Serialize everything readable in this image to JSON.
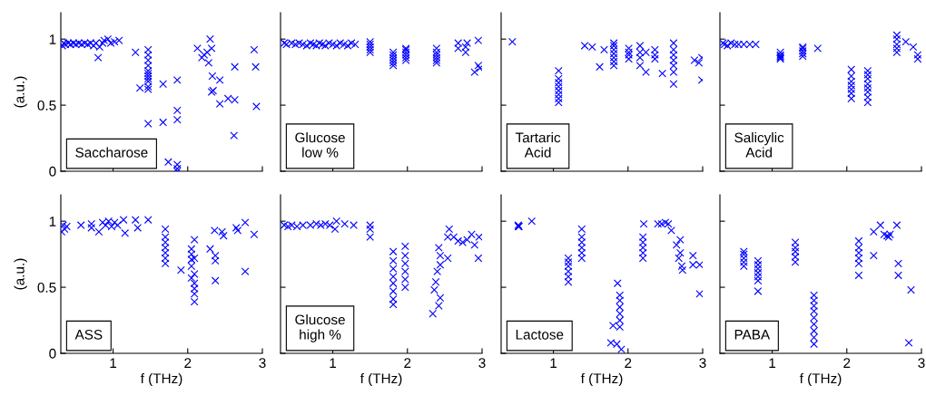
{
  "chart_data": [
    {
      "type": "scatter",
      "ylabel": "(a.u.)",
      "annotations": [
        "Saccharose"
      ],
      "xlim": [
        0.3,
        3
      ],
      "ylim": [
        0,
        1.2
      ],
      "xticks": [
        1,
        2,
        3
      ],
      "yticks": [
        0,
        0.5,
        1
      ],
      "tick_labels": "y",
      "marker": "cross",
      "series": [
        {
          "color": "#0000ff",
          "x": [
            0.32,
            0.34,
            0.36,
            0.4,
            0.43,
            0.47,
            0.5,
            0.54,
            0.58,
            0.62,
            0.66,
            0.7,
            0.74,
            0.77,
            0.8,
            0.82,
            0.86,
            0.88,
            0.93,
            0.97,
            1.02,
            1.08,
            1.3,
            1.36,
            1.47,
            1.47,
            1.47,
            1.47,
            1.47,
            1.47,
            1.47,
            1.47,
            1.47,
            1.47,
            1.47,
            1.47,
            1.67,
            1.67,
            1.86,
            1.86,
            1.86,
            1.74,
            1.86,
            1.86,
            1.86,
            2.13,
            2.19,
            2.22,
            2.26,
            2.28,
            2.3,
            2.32,
            2.33,
            2.32,
            2.34,
            2.43,
            2.43,
            2.54,
            2.63,
            2.63,
            2.62,
            2.89,
            2.91,
            2.92
          ],
          "values": [
            0.95,
            0.97,
            0.96,
            0.97,
            0.96,
            0.97,
            0.96,
            0.97,
            0.96,
            0.97,
            0.96,
            0.97,
            0.95,
            0.97,
            0.86,
            0.94,
            0.97,
            0.99,
            1.0,
            0.97,
            0.98,
            0.99,
            0.9,
            0.63,
            0.62,
            0.64,
            0.68,
            0.7,
            0.72,
            0.74,
            0.76,
            0.8,
            0.84,
            0.88,
            0.92,
            0.36,
            0.37,
            0.66,
            0.69,
            0.46,
            0.39,
            0.07,
            0.05,
            0.02,
            0.0,
            0.93,
            0.86,
            0.88,
            0.9,
            0.82,
            1.0,
            0.93,
            0.72,
            0.6,
            0.61,
            0.69,
            0.51,
            0.55,
            0.54,
            0.79,
            0.27,
            0.92,
            0.79,
            0.49
          ]
        }
      ]
    },
    {
      "type": "scatter",
      "annotations": [
        "Glucose\nlow %"
      ],
      "xlim": [
        0.3,
        3
      ],
      "ylim": [
        0,
        1.2
      ],
      "xticks": [
        1,
        2,
        3
      ],
      "yticks": [
        0,
        0.5,
        1
      ],
      "tick_labels": false,
      "marker": "cross",
      "series": [
        {
          "color": "#0000ff",
          "x": [
            0.35,
            0.38,
            0.45,
            0.5,
            0.55,
            0.6,
            0.65,
            0.7,
            0.74,
            0.78,
            0.82,
            0.86,
            0.9,
            0.95,
            1.0,
            1.05,
            1.1,
            1.15,
            1.2,
            1.25,
            1.3,
            1.5,
            1.5,
            1.5,
            1.5,
            1.5,
            1.81,
            1.81,
            1.81,
            1.81,
            1.81,
            1.81,
            1.98,
            1.98,
            1.98,
            1.98,
            1.98,
            1.98,
            2.39,
            2.39,
            2.39,
            2.39,
            2.39,
            2.39,
            2.68,
            2.68,
            2.78,
            2.78,
            2.8,
            2.95,
            2.9,
            2.95,
            2.97
          ],
          "values": [
            0.97,
            0.96,
            0.97,
            0.96,
            0.97,
            0.96,
            0.95,
            0.97,
            0.96,
            0.95,
            0.97,
            0.96,
            0.95,
            0.97,
            0.96,
            0.95,
            0.97,
            0.96,
            0.95,
            0.97,
            0.96,
            0.9,
            0.92,
            0.94,
            0.96,
            0.98,
            0.8,
            0.82,
            0.84,
            0.86,
            0.88,
            0.9,
            0.84,
            0.86,
            0.88,
            0.9,
            0.92,
            0.93,
            0.82,
            0.84,
            0.86,
            0.88,
            0.9,
            0.93,
            0.93,
            0.97,
            0.9,
            0.94,
            0.97,
            0.99,
            0.75,
            0.8,
            0.78
          ]
        }
      ]
    },
    {
      "type": "scatter",
      "annotations": [
        "Tartaric\nAcid"
      ],
      "xlim": [
        0.3,
        3
      ],
      "ylim": [
        0,
        1.2
      ],
      "xticks": [
        1,
        2,
        3
      ],
      "yticks": [
        0,
        0.5,
        1
      ],
      "tick_labels": false,
      "marker": "cross",
      "series": [
        {
          "color": "#0000ff",
          "x": [
            0.45,
            1.07,
            1.07,
            1.07,
            1.07,
            1.07,
            1.07,
            1.07,
            1.07,
            1.42,
            1.52,
            1.62,
            1.68,
            1.81,
            1.81,
            1.81,
            1.81,
            1.81,
            1.81,
            1.81,
            2.01,
            2.01,
            2.01,
            2.01,
            2.16,
            2.16,
            2.16,
            2.16,
            2.24,
            2.24,
            2.36,
            2.36,
            2.36,
            2.46,
            2.61,
            2.61,
            2.61,
            2.61,
            2.61,
            2.61,
            2.61,
            2.89,
            2.95,
            2.99,
            2.99
          ],
          "values": [
            0.98,
            0.52,
            0.55,
            0.58,
            0.61,
            0.64,
            0.67,
            0.7,
            0.76,
            0.95,
            0.94,
            0.79,
            0.92,
            0.8,
            0.83,
            0.86,
            0.89,
            0.92,
            0.95,
            0.97,
            0.85,
            0.88,
            0.9,
            0.93,
            0.8,
            0.86,
            0.9,
            0.95,
            0.75,
            0.9,
            0.85,
            0.88,
            0.92,
            0.74,
            0.66,
            0.75,
            0.8,
            0.84,
            0.88,
            0.92,
            0.97,
            0.84,
            0.82,
            0.86,
            0.69
          ]
        }
      ]
    },
    {
      "type": "scatter",
      "annotations": [
        "Salicylic\nAcid"
      ],
      "xlim": [
        0.3,
        3
      ],
      "ylim": [
        0,
        1.2
      ],
      "xticks": [
        1,
        2,
        3
      ],
      "yticks": [
        0,
        0.5,
        1
      ],
      "tick_labels": false,
      "marker": "cross",
      "series": [
        {
          "color": "#0000ff",
          "x": [
            0.34,
            0.36,
            0.4,
            0.45,
            0.5,
            0.55,
            0.62,
            0.7,
            0.78,
            1.11,
            1.11,
            1.11,
            1.11,
            1.11,
            1.41,
            1.41,
            1.41,
            1.41,
            1.41,
            1.61,
            2.06,
            2.06,
            2.06,
            2.06,
            2.06,
            2.06,
            2.06,
            2.28,
            2.28,
            2.28,
            2.28,
            2.28,
            2.28,
            2.28,
            2.28,
            2.67,
            2.67,
            2.67,
            2.67,
            2.67,
            2.79,
            2.89,
            2.95,
            2.95
          ],
          "values": [
            0.97,
            0.96,
            0.95,
            0.97,
            0.96,
            0.96,
            0.96,
            0.96,
            0.96,
            0.85,
            0.86,
            0.87,
            0.88,
            0.9,
            0.87,
            0.89,
            0.91,
            0.93,
            0.94,
            0.93,
            0.55,
            0.59,
            0.62,
            0.65,
            0.68,
            0.72,
            0.77,
            0.52,
            0.56,
            0.6,
            0.63,
            0.66,
            0.7,
            0.73,
            0.76,
            0.9,
            0.93,
            0.96,
            1.0,
            1.03,
            0.98,
            0.94,
            0.88,
            0.85
          ]
        }
      ]
    },
    {
      "type": "scatter",
      "xlabel": "f (THz)",
      "ylabel": "(a.u.)",
      "annotations": [
        "ASS"
      ],
      "xlim": [
        0.3,
        3
      ],
      "ylim": [
        0,
        1.2
      ],
      "xticks": [
        1,
        2,
        3
      ],
      "yticks": [
        0,
        0.5,
        1
      ],
      "marker": "cross",
      "series": [
        {
          "color": "#0000ff",
          "x": [
            0.31,
            0.33,
            0.35,
            0.38,
            0.57,
            0.71,
            0.71,
            0.81,
            0.86,
            0.9,
            0.94,
            0.98,
            1.02,
            1.06,
            1.14,
            1.16,
            1.3,
            1.33,
            1.47,
            1.7,
            1.7,
            1.7,
            1.7,
            1.7,
            1.7,
            1.7,
            1.91,
            2.05,
            2.05,
            2.05,
            2.05,
            2.05,
            2.09,
            2.09,
            2.09,
            2.09,
            2.09,
            2.09,
            2.09,
            2.3,
            2.37,
            2.37,
            2.37,
            2.36,
            2.46,
            2.48,
            2.65,
            2.67,
            2.77,
            2.77,
            2.89
          ],
          "values": [
            0.92,
            0.97,
            0.94,
            0.96,
            0.97,
            0.95,
            0.98,
            0.92,
            0.99,
            0.97,
            1.0,
            0.96,
            0.99,
            0.97,
            1.01,
            0.91,
            1.01,
            0.95,
            1.01,
            0.68,
            0.72,
            0.76,
            0.8,
            0.84,
            0.88,
            0.94,
            0.63,
            0.57,
            0.66,
            0.71,
            0.75,
            0.79,
            0.39,
            0.45,
            0.49,
            0.53,
            0.6,
            0.72,
            0.86,
            0.79,
            0.7,
            0.74,
            0.55,
            0.93,
            0.92,
            0.89,
            0.95,
            0.93,
            0.99,
            0.62,
            0.9
          ]
        }
      ]
    },
    {
      "type": "scatter",
      "xlabel": "f (THz)",
      "annotations": [
        "Glucose\nhigh %"
      ],
      "xlim": [
        0.3,
        3
      ],
      "ylim": [
        0,
        1.2
      ],
      "xticks": [
        1,
        2,
        3
      ],
      "yticks": [
        0,
        0.5,
        1
      ],
      "tick_labels": "x",
      "marker": "cross",
      "series": [
        {
          "color": "#0000ff",
          "x": [
            0.35,
            0.4,
            0.45,
            0.52,
            0.6,
            0.7,
            0.78,
            0.84,
            0.9,
            0.96,
            1.03,
            1.05,
            1.16,
            1.28,
            1.5,
            1.5,
            1.5,
            1.81,
            1.81,
            1.81,
            1.81,
            1.81,
            1.81,
            1.81,
            1.81,
            1.97,
            1.97,
            1.97,
            1.97,
            1.97,
            1.97,
            2.34,
            2.36,
            2.38,
            2.4,
            2.42,
            2.44,
            2.44,
            2.44,
            2.42,
            2.54,
            2.54,
            2.56,
            2.62,
            2.68,
            2.74,
            2.8,
            2.86,
            2.9,
            2.95,
            2.96
          ],
          "values": [
            0.97,
            0.96,
            0.97,
            0.96,
            0.97,
            0.97,
            0.98,
            0.97,
            0.98,
            0.97,
            0.94,
            1.0,
            0.98,
            0.97,
            0.88,
            0.94,
            0.97,
            0.37,
            0.41,
            0.47,
            0.53,
            0.58,
            0.64,
            0.7,
            0.77,
            0.5,
            0.56,
            0.62,
            0.68,
            0.74,
            0.81,
            0.3,
            0.48,
            0.54,
            0.62,
            0.36,
            0.42,
            0.67,
            0.74,
            0.8,
            0.72,
            0.88,
            0.94,
            0.88,
            0.85,
            0.84,
            0.86,
            0.9,
            0.82,
            0.72,
            0.88
          ]
        }
      ]
    },
    {
      "type": "scatter",
      "xlabel": "f (THz)",
      "annotations": [
        "Lactose"
      ],
      "xlim": [
        0.3,
        3
      ],
      "ylim": [
        0,
        1.2
      ],
      "xticks": [
        1,
        2,
        3
      ],
      "yticks": [
        0,
        0.5,
        1
      ],
      "tick_labels": "x",
      "marker": "cross",
      "series": [
        {
          "color": "#0000ff",
          "x": [
            0.53,
            0.53,
            0.54,
            0.71,
            1.2,
            1.2,
            1.2,
            1.2,
            1.2,
            1.2,
            1.38,
            1.38,
            1.38,
            1.38,
            1.38,
            1.38,
            1.86,
            1.89,
            1.89,
            1.89,
            1.89,
            1.89,
            1.89,
            1.77,
            1.85,
            1.91,
            1.8,
            2.2,
            2.2,
            2.2,
            2.2,
            2.2,
            2.21,
            2.4,
            2.45,
            2.5,
            2.54,
            2.58,
            2.65,
            2.68,
            2.7,
            2.7,
            2.72,
            2.73,
            2.87,
            2.87,
            2.96,
            2.96
          ],
          "values": [
            0.96,
            0.97,
            0.96,
            1.0,
            0.54,
            0.58,
            0.62,
            0.66,
            0.69,
            0.72,
            0.72,
            0.76,
            0.8,
            0.84,
            0.88,
            0.94,
            0.53,
            0.2,
            0.25,
            0.3,
            0.35,
            0.4,
            0.44,
            0.08,
            0.07,
            0.03,
            0.21,
            0.72,
            0.76,
            0.8,
            0.84,
            0.88,
            0.98,
            0.98,
            0.98,
            0.99,
            0.98,
            0.93,
            0.82,
            0.72,
            0.86,
            0.76,
            0.66,
            0.63,
            0.74,
            0.67,
            0.67,
            0.45
          ]
        }
      ]
    },
    {
      "type": "scatter",
      "xlabel": "f (THz)",
      "annotations": [
        "PABA"
      ],
      "xlim": [
        0.3,
        3
      ],
      "ylim": [
        0,
        1.2
      ],
      "xticks": [
        1,
        2,
        3
      ],
      "yticks": [
        0,
        0.5,
        1
      ],
      "tick_labels": "x",
      "marker": "cross",
      "series": [
        {
          "color": "#0000ff",
          "x": [
            0.62,
            0.62,
            0.62,
            0.62,
            0.62,
            0.81,
            0.81,
            0.81,
            0.81,
            0.81,
            0.81,
            0.81,
            1.31,
            1.31,
            1.31,
            1.31,
            1.31,
            1.56,
            1.56,
            1.56,
            1.56,
            1.56,
            1.56,
            1.56,
            1.56,
            1.56,
            2.16,
            2.16,
            2.16,
            2.16,
            2.16,
            2.16,
            2.36,
            2.36,
            2.45,
            2.5,
            2.54,
            2.56,
            2.58,
            2.67,
            2.69,
            2.69,
            2.86,
            2.83
          ],
          "values": [
            0.66,
            0.69,
            0.72,
            0.75,
            0.77,
            0.55,
            0.58,
            0.61,
            0.64,
            0.67,
            0.7,
            0.47,
            0.69,
            0.73,
            0.77,
            0.8,
            0.84,
            0.07,
            0.12,
            0.17,
            0.22,
            0.27,
            0.32,
            0.36,
            0.4,
            0.44,
            0.59,
            0.68,
            0.72,
            0.76,
            0.8,
            0.85,
            0.74,
            0.92,
            0.97,
            0.9,
            0.89,
            0.88,
            0.9,
            0.97,
            0.68,
            0.59,
            0.48,
            0.08
          ]
        }
      ]
    }
  ]
}
